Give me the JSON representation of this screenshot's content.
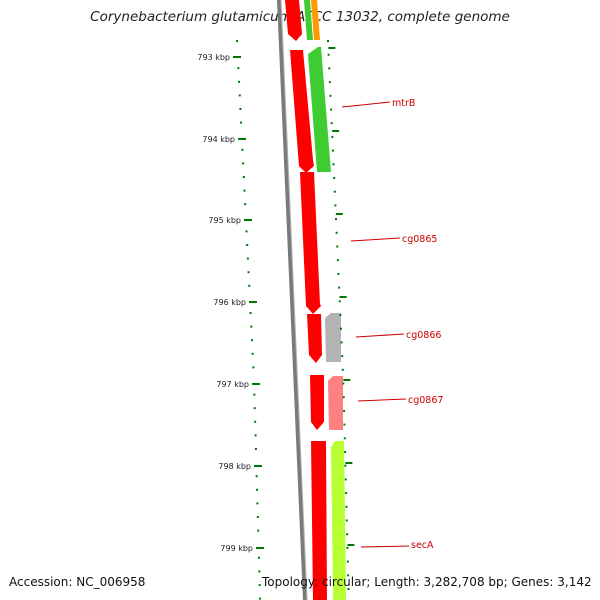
{
  "title": "Corynebacterium glutamicum ATCC 13032, complete genome",
  "accession": "Accession: NC_006958",
  "topology": "Topology: circular; Length: 3,282,708 bp; Genes: 3,142",
  "ruler": [
    {
      "label": "793 kbp"
    },
    {
      "label": "794 kbp"
    },
    {
      "label": "795 kbp"
    },
    {
      "label": "796 kbp"
    },
    {
      "label": "797 kbp"
    },
    {
      "label": "798 kbp"
    },
    {
      "label": "799 kbp"
    }
  ],
  "gene_labels": [
    "mtrB",
    "cg0865",
    "cg0866",
    "cg0867",
    "secA"
  ],
  "colors": {
    "forward_strand": "#ff0000",
    "reverse_green": "#3fcc33",
    "reverse_lime": "#b8ff33",
    "reverse_grey": "#b3b3b3",
    "reverse_pink": "#ff8080",
    "tick_green": "#007700",
    "backbone": "#7a7a7a",
    "label_red": "#cc0000"
  }
}
